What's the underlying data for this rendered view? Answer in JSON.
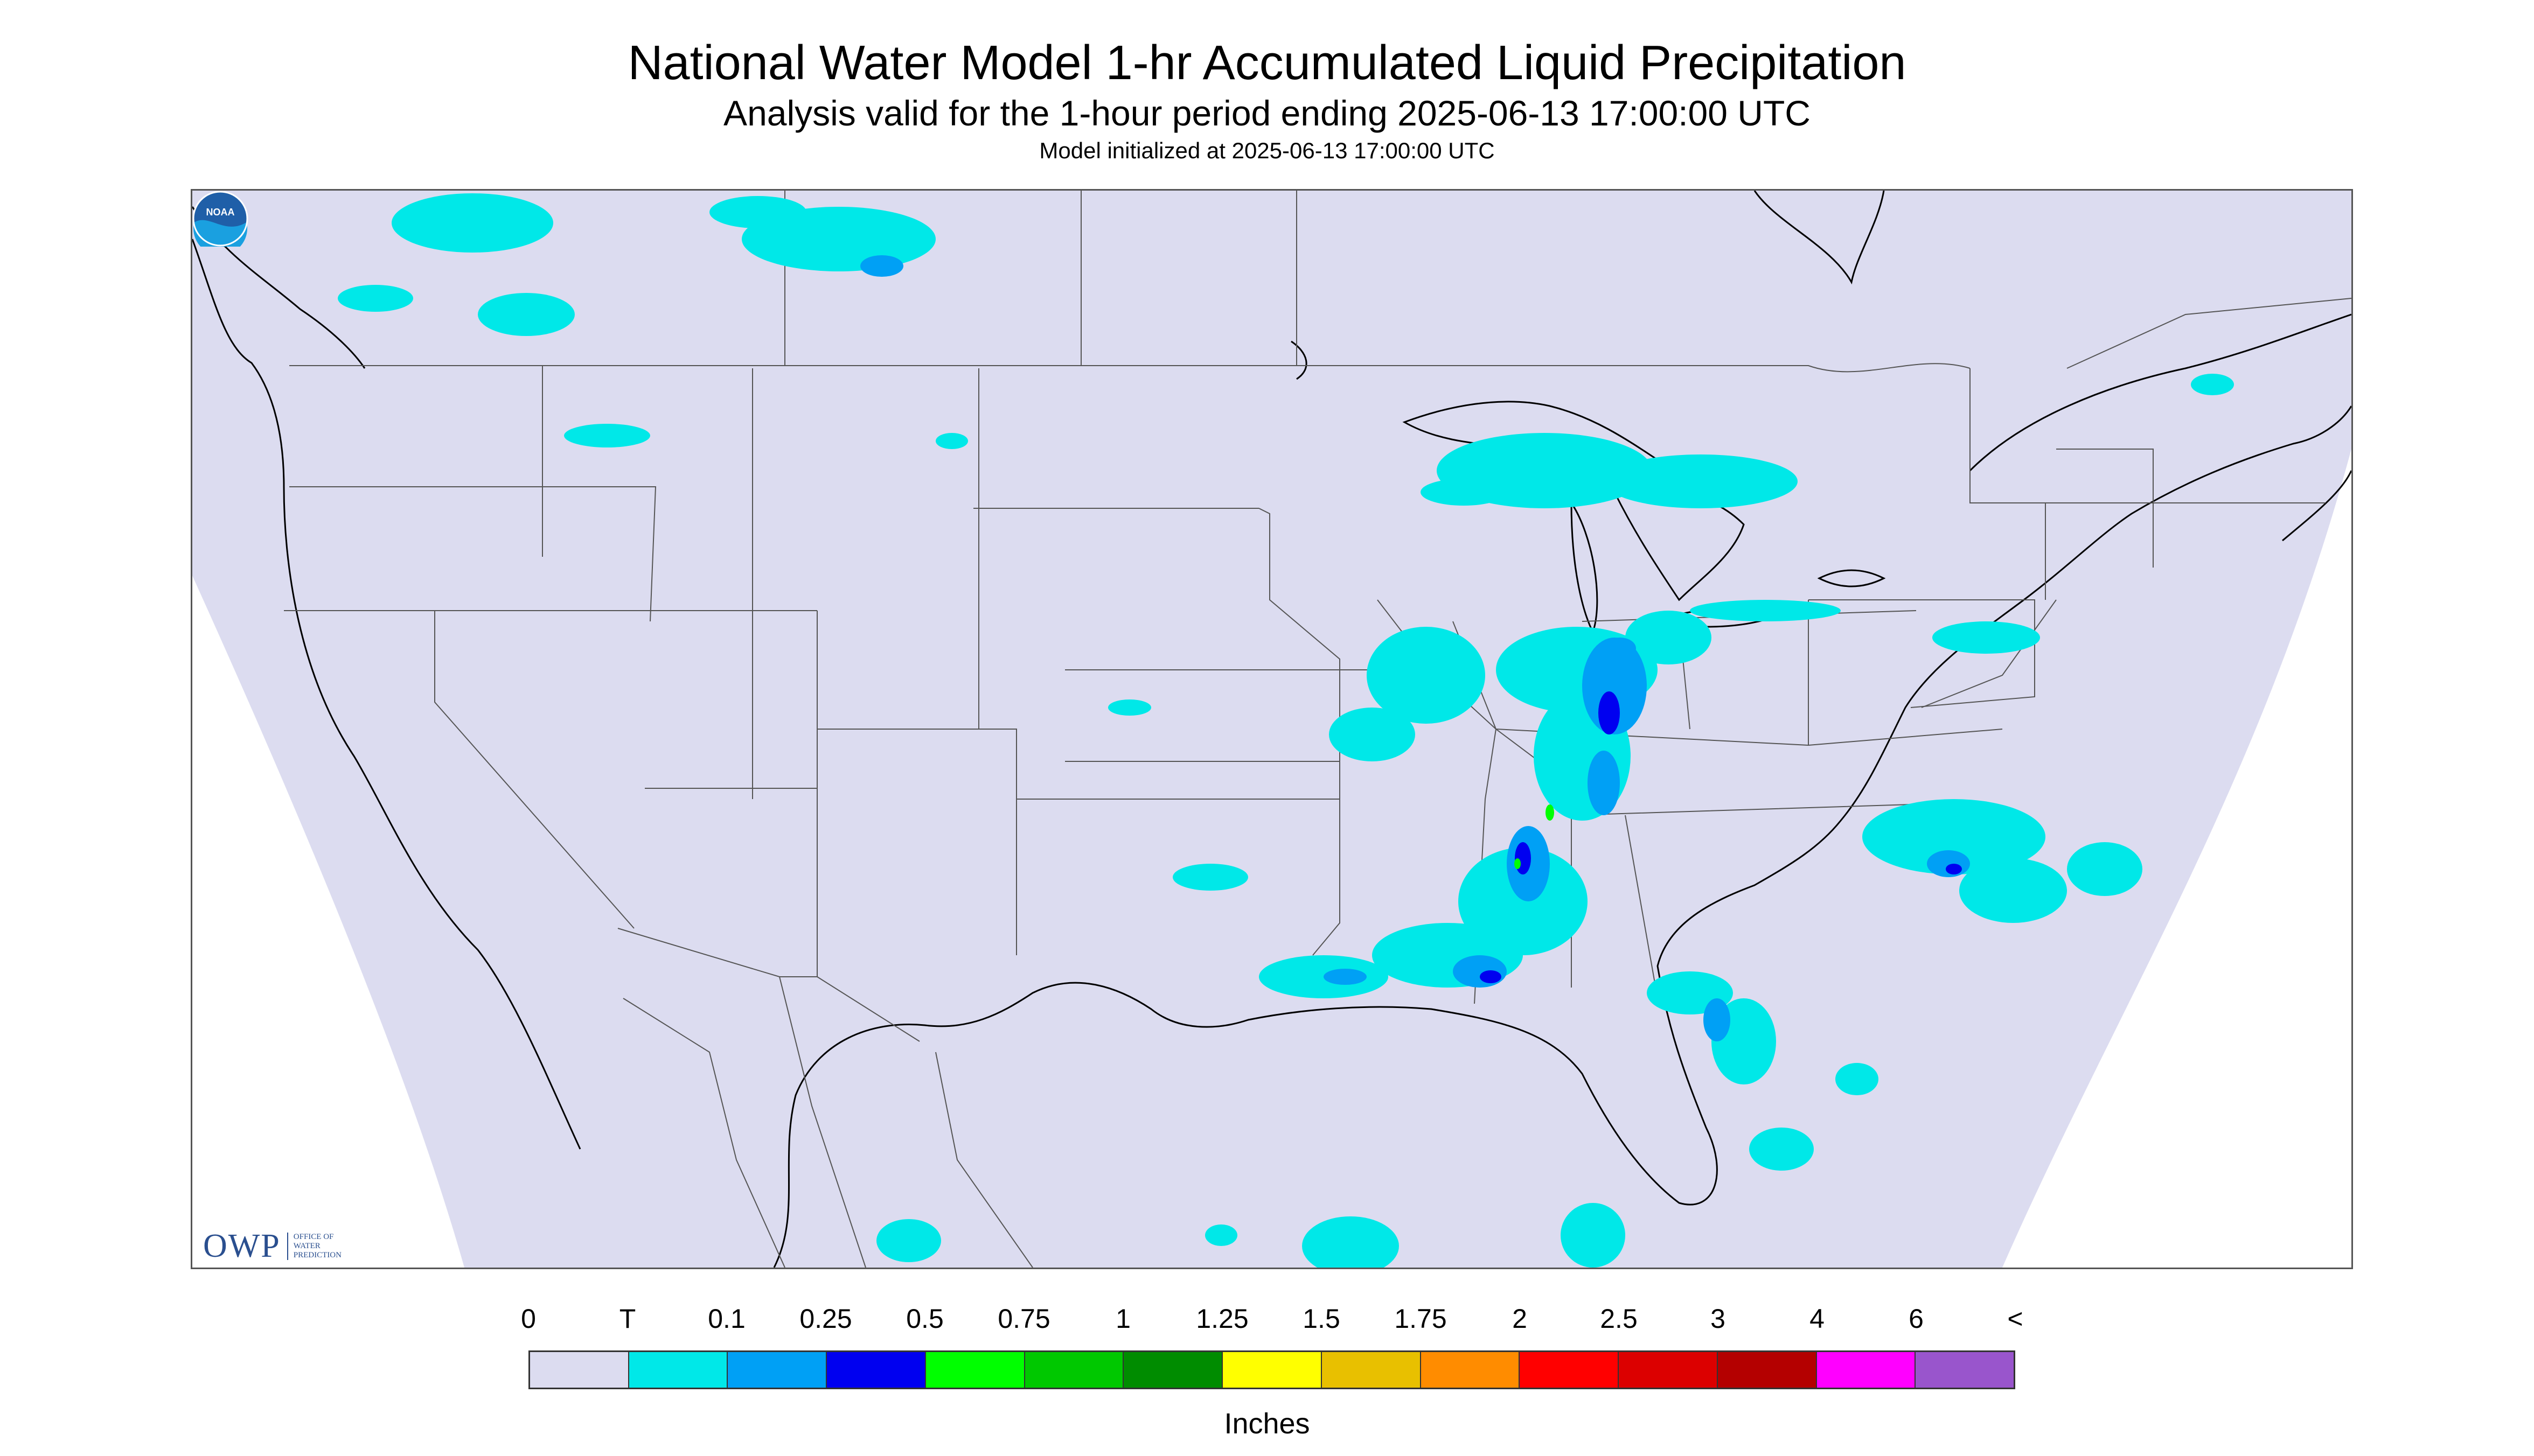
{
  "header": {
    "title": "National Water Model 1-hr Accumulated Liquid Precipitation",
    "subtitle": "Analysis valid for the 1-hour period ending 2025-06-13 17:00:00 UTC",
    "init_line": "Model initialized at 2025-06-13 17:00:00 UTC"
  },
  "logos": {
    "owp_mark": "OWP",
    "owp_sub": [
      "OFFICE OF",
      "WATER",
      "PREDICTION"
    ],
    "noaa_mark": "NOAA"
  },
  "legend": {
    "units": "Inches",
    "labels": [
      "0",
      "T",
      "0.1",
      "0.25",
      "0.5",
      "0.75",
      "1",
      "1.25",
      "1.5",
      "1.75",
      "2",
      "2.5",
      "3",
      "4",
      "6",
      "<"
    ],
    "colors": [
      "#dcdcf0",
      "#00e8e8",
      "#00a0f5",
      "#0000f0",
      "#00ff00",
      "#00c800",
      "#008c00",
      "#ffff00",
      "#e8c000",
      "#ff8c00",
      "#ff0000",
      "#dc0000",
      "#b40000",
      "#ff00ff",
      "#9955cc"
    ]
  },
  "colors": {
    "domain_fill": "#dcdcf0",
    "outside_fill": "#ffffff",
    "boundary_line": "#555555",
    "coast_line": "#000000"
  }
}
